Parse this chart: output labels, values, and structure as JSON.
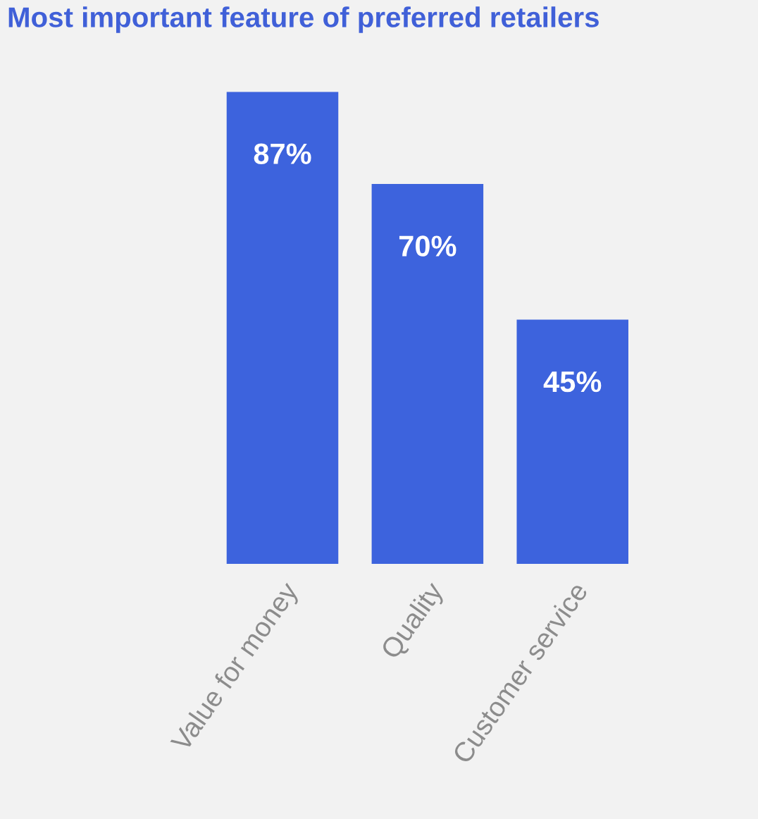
{
  "chart_data": {
    "type": "bar",
    "title": "Most important feature of preferred retailers",
    "categories": [
      "Value for money",
      "Quality",
      "Customer service"
    ],
    "values": [
      87,
      70,
      45
    ],
    "value_labels": [
      "87%",
      "70%",
      "45%"
    ],
    "color": "#3d63dd",
    "grid": false,
    "legend": false
  }
}
